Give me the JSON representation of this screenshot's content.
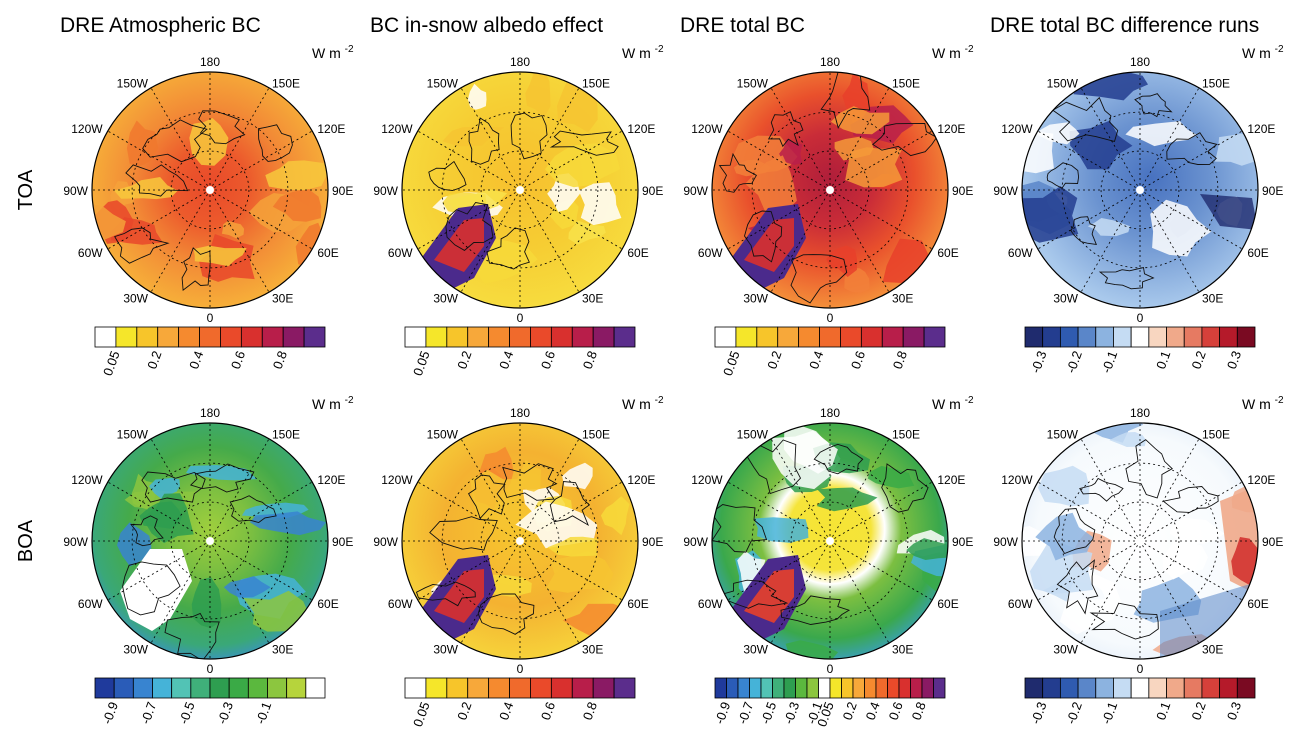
{
  "columns": [
    {
      "title": "DRE Atmospheric BC",
      "palette": "yellow-red"
    },
    {
      "title": "BC in-snow albedo effect",
      "palette": "yellow-red"
    },
    {
      "title": "DRE total BC",
      "palette": "yellow-red"
    },
    {
      "title": "DRE total BC difference runs",
      "palette": "blue-red"
    }
  ],
  "rows": [
    "TOA",
    "BOA"
  ],
  "unit": "W m",
  "unit_exp": "-2",
  "lon_labels": {
    "top": "180",
    "bottom": "0",
    "left": "90W",
    "right": "90E",
    "upper_left_1": "150W",
    "upper_left_2": "120W",
    "upper_right_1": "150E",
    "upper_right_2": "120E",
    "lower_left_1": "60W",
    "lower_left_2": "30W",
    "lower_right_1": "60E",
    "lower_right_2": "30E"
  },
  "colorbars": {
    "yellow_red": {
      "colors": [
        "#ffffff",
        "#f5e62a",
        "#f7c52a",
        "#f7a83a",
        "#f58a2f",
        "#f06a2c",
        "#ea4a2a",
        "#d9302e",
        "#b81e4a",
        "#8a1a64",
        "#5b2d8c"
      ],
      "labels": [
        "0.05",
        "0.2",
        "0.4",
        "0.6",
        "0.8"
      ]
    },
    "diff": {
      "colors": [
        "#1f2b6e",
        "#233d8f",
        "#2f5bb0",
        "#5a86c9",
        "#8cb3e0",
        "#c5dcf3",
        "#ffffff",
        "#f8d6c0",
        "#f0a98a",
        "#e67a62",
        "#d6403a",
        "#b51a2a",
        "#7a0a22"
      ],
      "labels": [
        "-0.3",
        "-0.2",
        "-0.1",
        "0.1",
        "0.2",
        "0.3"
      ]
    },
    "green": {
      "colors": [
        "#1f3a9c",
        "#2a5cb8",
        "#3884d0",
        "#45b3d8",
        "#52c3b5",
        "#3fb07a",
        "#2e9e50",
        "#3aaa46",
        "#5bb83e",
        "#8cc63f",
        "#b6d43c",
        "#ffffff"
      ],
      "labels": [
        "-0.9",
        "-0.7",
        "-0.5",
        "-0.3",
        "-0.1"
      ]
    },
    "combined": {
      "colors": [
        "#1f3a9c",
        "#2a5cb8",
        "#3884d0",
        "#45b3d8",
        "#52c3b5",
        "#3fb07a",
        "#2e9e50",
        "#5bb83e",
        "#8cc63f",
        "#ffffff",
        "#f5e62a",
        "#f7c52a",
        "#f7a83a",
        "#f58a2f",
        "#f06a2c",
        "#ea4a2a",
        "#d9302e",
        "#b81e4a",
        "#8a1a64",
        "#5b2d8c"
      ],
      "labels": [
        "-0.9",
        "-0.7",
        "-0.5",
        "-0.3",
        "-0.1",
        "0.05",
        "0.2",
        "0.4",
        "0.6",
        "0.8"
      ]
    }
  }
}
